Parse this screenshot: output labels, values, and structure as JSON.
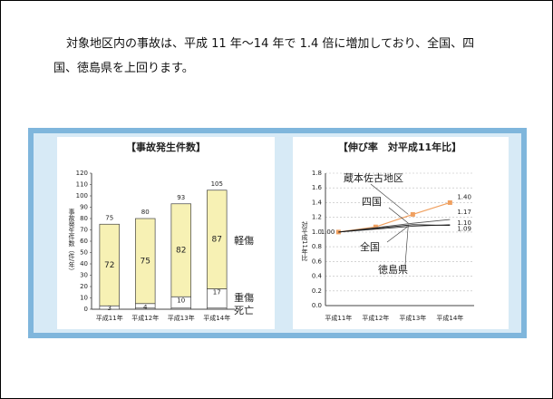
{
  "text": [
    "対象地区内の事故は、平成 11 年～14 年で 1.4 倍に増加しており、全国、四",
    "国、徳島県を上回ります。"
  ],
  "chart_data": [
    {
      "type": "stacked-bar",
      "title": "【事故発生件数】",
      "y_label": "事故発生件数（件/年）",
      "categories": [
        "平成11年",
        "平成12年",
        "平成13年",
        "平成14年"
      ],
      "ylim": [
        0,
        120
      ],
      "yticks": [
        0,
        10,
        20,
        30,
        40,
        50,
        60,
        70,
        80,
        90,
        100,
        110,
        120
      ],
      "series": [
        {
          "name": "死亡",
          "color": "#ffffff",
          "values": [
            0,
            1,
            1,
            1
          ]
        },
        {
          "name": "重傷",
          "color": "#ffffff",
          "values": [
            3,
            4,
            10,
            17
          ]
        },
        {
          "name": "軽傷",
          "color": "#f7f1b4",
          "values": [
            72,
            75,
            82,
            87
          ]
        }
      ],
      "totals": [
        75,
        80,
        93,
        105
      ]
    },
    {
      "type": "line",
      "title": "【伸び率　対平成11年比】",
      "y_label": "対平成11年比",
      "categories": [
        "平成11年",
        "平成12年",
        "平成13年",
        "平成14年"
      ],
      "ylim": [
        0,
        1.8
      ],
      "yticks": [
        {
          "value": 0,
          "label": "0.0"
        },
        0.2,
        0.4,
        0.6,
        0.8,
        {
          "value": 1,
          "label": "1.0"
        },
        1.2,
        1.4,
        1.6,
        1.8
      ],
      "grid": true,
      "series": [
        {
          "name": "蔵本佐古地区",
          "color": "#f0a060",
          "values": [
            1.0,
            1.07,
            1.24,
            1.4
          ],
          "value_labels": [
            "1.00",
            null,
            null,
            "1.40"
          ]
        },
        {
          "name": "四国",
          "color": "#555555",
          "values": [
            1.0,
            1.06,
            1.12,
            1.17
          ],
          "value_labels": [
            null,
            null,
            null,
            "1.17"
          ]
        },
        {
          "name": "全国",
          "color": "#333333",
          "values": [
            1.0,
            1.04,
            1.08,
            1.1
          ],
          "value_labels": [
            null,
            null,
            null,
            "1.10"
          ]
        },
        {
          "name": "徳島県",
          "color": "#111111",
          "values": [
            1.0,
            1.05,
            1.1,
            1.09
          ],
          "value_labels": [
            null,
            null,
            null,
            "1.09"
          ]
        }
      ]
    }
  ]
}
